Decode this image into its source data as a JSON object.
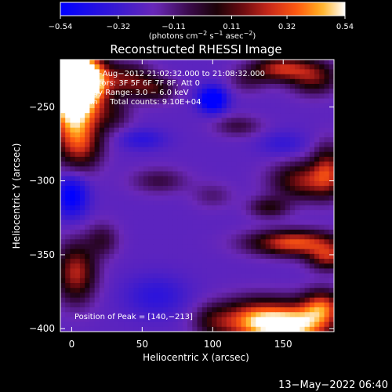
{
  "chart_data": {
    "type": "heatmap",
    "title": "Reconstructed RHESSI Image",
    "xlabel": "Heliocentric X (arcsec)",
    "ylabel": "Heliocentric Y (arcsec)",
    "xlim": [
      -8,
      186
    ],
    "ylim": [
      -402,
      -218
    ],
    "x_ticks": [
      0,
      50,
      100,
      150
    ],
    "y_ticks": [
      -250,
      -300,
      -350,
      -400
    ],
    "x_tick_labels": [
      "0",
      "50",
      "100",
      "150"
    ],
    "y_tick_labels": [
      "−250",
      "−300",
      "−350",
      "−400"
    ],
    "colorbar": {
      "min": -0.54,
      "max": 0.54,
      "ticks": [
        -0.54,
        -0.32,
        -0.11,
        0.11,
        0.32,
        0.54
      ],
      "tick_labels": [
        "−0.54",
        "−0.32",
        "−0.11",
        "0.11",
        "0.32",
        "0.54"
      ],
      "units_line1": "(photons cm",
      "units_sup1": "−2",
      "units_line2": " s",
      "units_sup2": "−1",
      "units_line3": " asec",
      "units_sup3": "−2",
      "units_line4": ")"
    },
    "annotations": {
      "time_range": "1−Aug−2012 21:02:32.000 to 21:08:32.000",
      "detectors": "Detectors: 3F 5F 6F 7F 8F, Att 0",
      "energy": "Energy Range: 3.0 − 6.0 keV",
      "clean": "Clean     Total counts: 9.10E+04",
      "peak": "Position of Peak = [140,−213]"
    },
    "blobs": [
      {
        "x": -6,
        "y": -228,
        "sx": 14,
        "sy": 14,
        "v": 0.9
      },
      {
        "x": 2,
        "y": -250,
        "sx": 12,
        "sy": 22,
        "v": 0.75
      },
      {
        "x": 14,
        "y": -232,
        "sx": 10,
        "sy": 10,
        "v": 0.45
      },
      {
        "x": 40,
        "y": -232,
        "sx": 12,
        "sy": 8,
        "v": 0.35
      },
      {
        "x": 60,
        "y": -238,
        "sx": 10,
        "sy": 6,
        "v": 0.25
      },
      {
        "x": 28,
        "y": -255,
        "sx": 10,
        "sy": 8,
        "v": 0.2
      },
      {
        "x": 8,
        "y": -278,
        "sx": 10,
        "sy": 10,
        "v": 0.2
      },
      {
        "x": 148,
        "y": -224,
        "sx": 14,
        "sy": 6,
        "v": 0.45
      },
      {
        "x": 172,
        "y": -230,
        "sx": 12,
        "sy": 8,
        "v": 0.35
      },
      {
        "x": 125,
        "y": -232,
        "sx": 10,
        "sy": 6,
        "v": 0.15
      },
      {
        "x": 118,
        "y": -263,
        "sx": 12,
        "sy": 5,
        "v": 0.18
      },
      {
        "x": 165,
        "y": -300,
        "sx": 16,
        "sy": 9,
        "v": 0.4
      },
      {
        "x": 182,
        "y": -292,
        "sx": 8,
        "sy": 12,
        "v": 0.35
      },
      {
        "x": 140,
        "y": -318,
        "sx": 10,
        "sy": 5,
        "v": 0.25
      },
      {
        "x": 158,
        "y": -342,
        "sx": 22,
        "sy": 6,
        "v": 0.55
      },
      {
        "x": 182,
        "y": -352,
        "sx": 10,
        "sy": 6,
        "v": 0.4
      },
      {
        "x": 3,
        "y": -362,
        "sx": 10,
        "sy": 14,
        "v": 0.45
      },
      {
        "x": 22,
        "y": -340,
        "sx": 8,
        "sy": 8,
        "v": 0.2
      },
      {
        "x": 62,
        "y": -300,
        "sx": 14,
        "sy": 6,
        "v": 0.18
      },
      {
        "x": 100,
        "y": -310,
        "sx": 10,
        "sy": 6,
        "v": 0.12
      },
      {
        "x": 130,
        "y": -395,
        "sx": 18,
        "sy": 10,
        "v": 0.6
      },
      {
        "x": 160,
        "y": -398,
        "sx": 18,
        "sy": 10,
        "v": 0.65
      },
      {
        "x": 178,
        "y": -385,
        "sx": 10,
        "sy": 8,
        "v": 0.45
      },
      {
        "x": 100,
        "y": -395,
        "sx": 10,
        "sy": 8,
        "v": 0.2
      },
      {
        "x": 100,
        "y": -245,
        "sx": 7,
        "sy": 6,
        "v": -0.45
      },
      {
        "x": 0,
        "y": -310,
        "sx": 8,
        "sy": 10,
        "v": -0.35
      },
      {
        "x": 50,
        "y": -272,
        "sx": 12,
        "sy": 5,
        "v": -0.15
      },
      {
        "x": 150,
        "y": -275,
        "sx": 12,
        "sy": 6,
        "v": -0.12
      },
      {
        "x": 60,
        "y": -378,
        "sx": 16,
        "sy": 10,
        "v": -0.15
      }
    ],
    "base_level": -0.22,
    "colormap_stops": [
      [
        -0.54,
        "#0000ff"
      ],
      [
        -0.32,
        "#3a1ad0"
      ],
      [
        -0.18,
        "#6a28b8"
      ],
      [
        -0.05,
        "#3a0a4a"
      ],
      [
        0.05,
        "#1a0208"
      ],
      [
        0.15,
        "#6a0a10"
      ],
      [
        0.25,
        "#c8281a"
      ],
      [
        0.36,
        "#ff5a10"
      ],
      [
        0.45,
        "#ffb020"
      ],
      [
        0.54,
        "#ffffff"
      ]
    ]
  },
  "footer": {
    "date_stamp": "13−May−2022 06:40"
  }
}
